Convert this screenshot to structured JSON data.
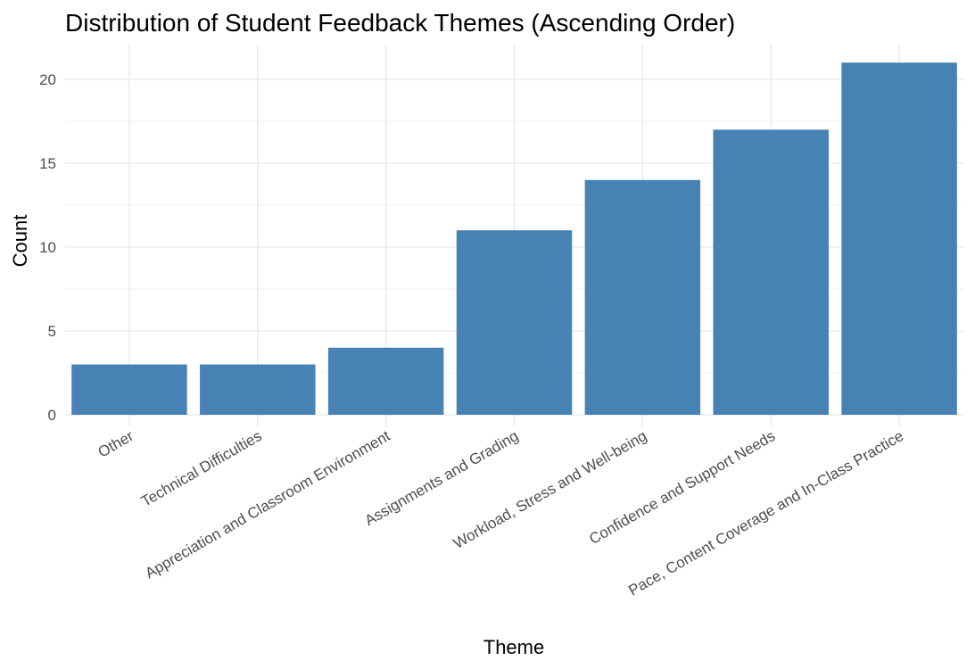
{
  "chart_data": {
    "type": "bar",
    "title": "Distribution of Student Feedback Themes (Ascending Order)",
    "xlabel": "Theme",
    "ylabel": "Count",
    "categories": [
      "Other",
      "Technical Difficulties",
      "Appreciation and Classroom Environment",
      "Assignments and Grading",
      "Workload, Stress and Well-being",
      "Confidence and Support Needs",
      "Pace, Content Coverage and In-Class Practice"
    ],
    "values": [
      3,
      3,
      4,
      11,
      14,
      17,
      21
    ],
    "ylim": [
      0,
      22
    ],
    "yticks": [
      0,
      5,
      10,
      15,
      20
    ],
    "grid": true,
    "legend": "none",
    "bar_color": "#4682b4",
    "theme": "minimal"
  }
}
